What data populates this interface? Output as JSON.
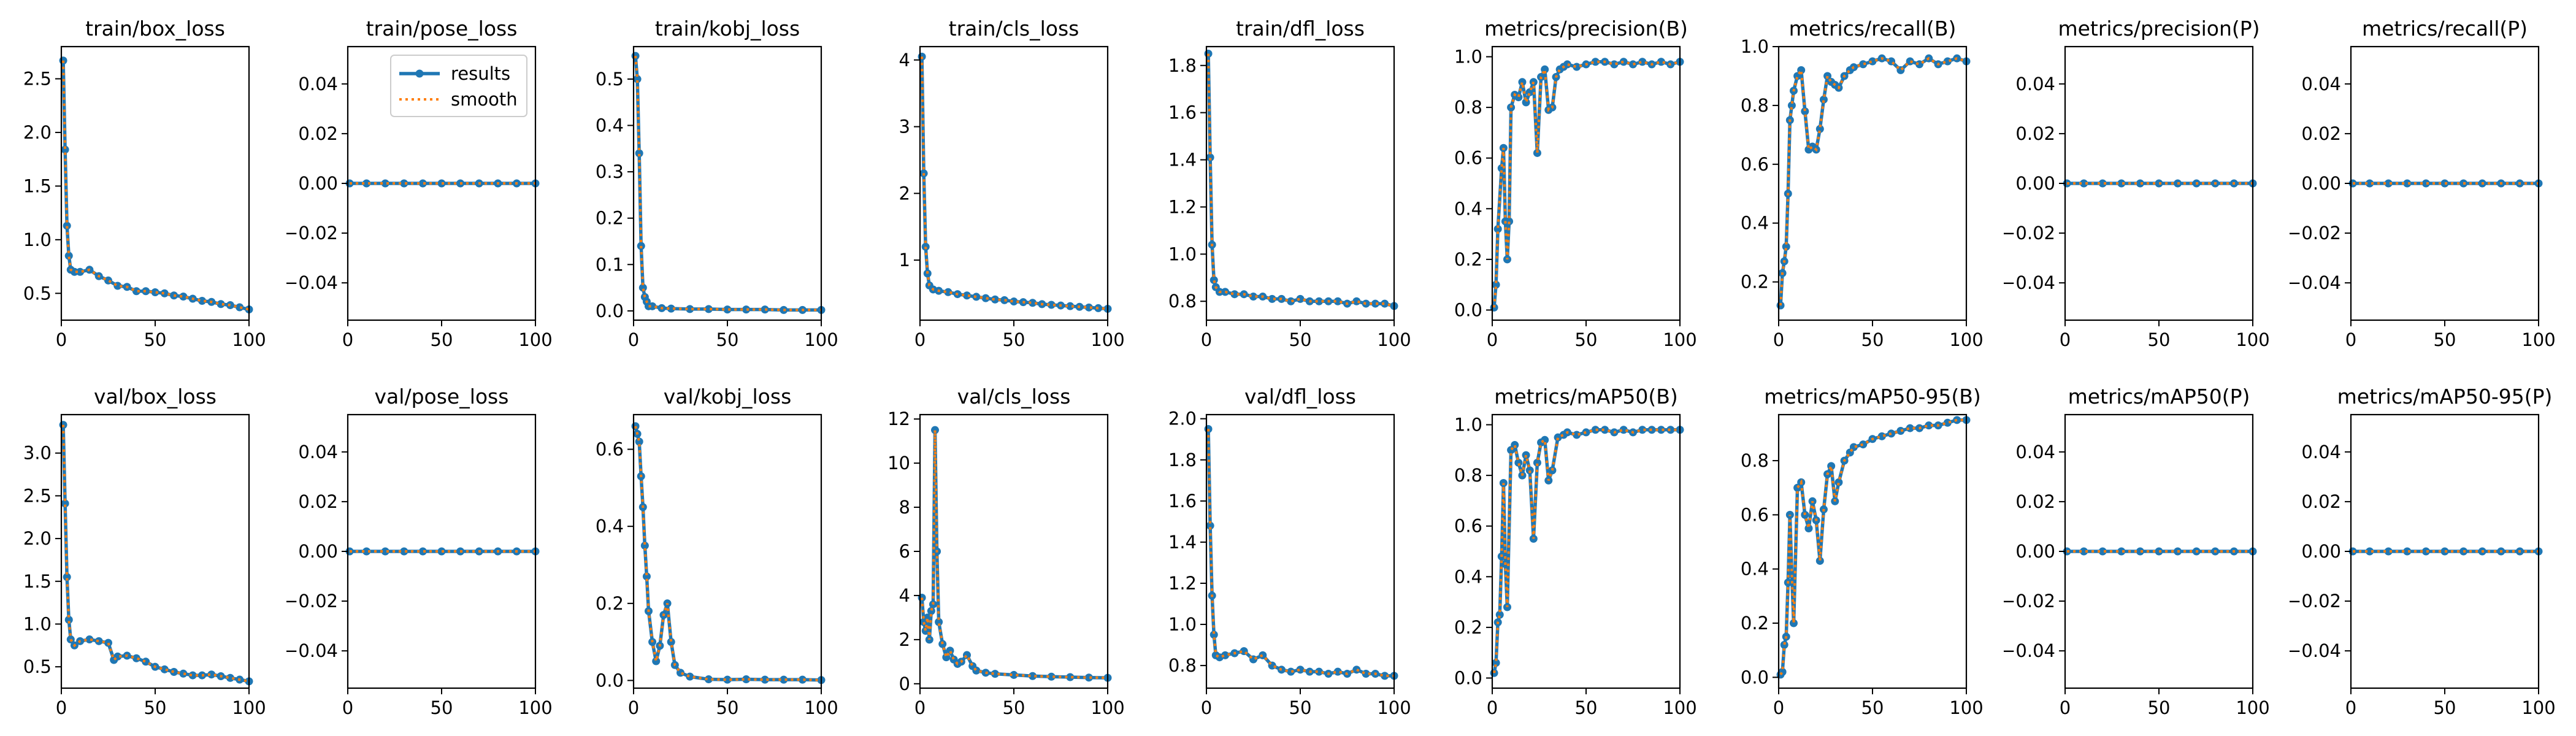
{
  "legend": {
    "results_label": "results",
    "smooth_label": "smooth"
  },
  "colors": {
    "results": "#1f77b4",
    "smooth": "#ff7f0e",
    "axis": "#000000",
    "background": "#ffffff"
  },
  "chart_data": [
    {
      "type": "line",
      "title": "train/box_loss",
      "legend": "none",
      "grid": false,
      "xlim": [
        0,
        100
      ],
      "ylim": [
        0.25,
        2.8
      ],
      "xticks": [
        0,
        50,
        100
      ],
      "yticks": [
        0.5,
        1.0,
        1.5,
        2.0,
        2.5
      ],
      "x": [
        1,
        2,
        3,
        4,
        5,
        7,
        10,
        15,
        20,
        25,
        30,
        35,
        40,
        45,
        50,
        55,
        60,
        65,
        70,
        75,
        80,
        85,
        90,
        95,
        100
      ],
      "values": [
        2.67,
        1.84,
        1.13,
        0.85,
        0.72,
        0.7,
        0.7,
        0.72,
        0.66,
        0.62,
        0.57,
        0.56,
        0.52,
        0.52,
        0.51,
        0.5,
        0.48,
        0.47,
        0.45,
        0.43,
        0.42,
        0.4,
        0.39,
        0.37,
        0.35
      ]
    },
    {
      "type": "line",
      "title": "train/pose_loss",
      "legend": "top-right",
      "grid": false,
      "xlim": [
        0,
        100
      ],
      "ylim": [
        -0.055,
        0.055
      ],
      "xticks": [
        0,
        50,
        100
      ],
      "yticks": [
        -0.04,
        -0.02,
        0.0,
        0.02,
        0.04
      ],
      "x": [
        1,
        10,
        20,
        30,
        40,
        50,
        60,
        70,
        80,
        90,
        100
      ],
      "values": [
        0,
        0,
        0,
        0,
        0,
        0,
        0,
        0,
        0,
        0,
        0
      ]
    },
    {
      "type": "line",
      "title": "train/kobj_loss",
      "legend": "none",
      "grid": false,
      "xlim": [
        0,
        100
      ],
      "ylim": [
        -0.02,
        0.57
      ],
      "xticks": [
        0,
        50,
        100
      ],
      "yticks": [
        0.0,
        0.1,
        0.2,
        0.3,
        0.4,
        0.5
      ],
      "x": [
        1,
        2,
        3,
        4,
        5,
        6,
        7,
        8,
        10,
        15,
        20,
        30,
        40,
        50,
        60,
        70,
        80,
        90,
        100
      ],
      "values": [
        0.55,
        0.5,
        0.34,
        0.14,
        0.05,
        0.03,
        0.02,
        0.01,
        0.01,
        0.006,
        0.005,
        0.004,
        0.004,
        0.003,
        0.003,
        0.003,
        0.002,
        0.002,
        0.002
      ]
    },
    {
      "type": "line",
      "title": "train/cls_loss",
      "legend": "none",
      "grid": false,
      "xlim": [
        0,
        100
      ],
      "ylim": [
        0.1,
        4.2
      ],
      "xticks": [
        0,
        50,
        100
      ],
      "yticks": [
        1,
        2,
        3,
        4
      ],
      "x": [
        1,
        2,
        3,
        4,
        5,
        7,
        10,
        15,
        20,
        25,
        30,
        35,
        40,
        45,
        50,
        55,
        60,
        65,
        70,
        75,
        80,
        85,
        90,
        95,
        100
      ],
      "values": [
        4.05,
        2.3,
        1.2,
        0.8,
        0.62,
        0.56,
        0.54,
        0.52,
        0.49,
        0.47,
        0.45,
        0.43,
        0.41,
        0.4,
        0.38,
        0.37,
        0.36,
        0.34,
        0.33,
        0.32,
        0.31,
        0.3,
        0.29,
        0.28,
        0.27
      ]
    },
    {
      "type": "line",
      "title": "train/dfl_loss",
      "legend": "none",
      "grid": false,
      "xlim": [
        0,
        100
      ],
      "ylim": [
        0.72,
        1.88
      ],
      "xticks": [
        0,
        50,
        100
      ],
      "yticks": [
        0.8,
        1.0,
        1.2,
        1.4,
        1.6,
        1.8
      ],
      "x": [
        1,
        2,
        3,
        4,
        5,
        7,
        10,
        15,
        20,
        25,
        30,
        35,
        40,
        45,
        50,
        55,
        60,
        65,
        70,
        75,
        80,
        85,
        90,
        95,
        100
      ],
      "values": [
        1.85,
        1.41,
        1.04,
        0.89,
        0.86,
        0.84,
        0.84,
        0.83,
        0.83,
        0.82,
        0.82,
        0.81,
        0.81,
        0.8,
        0.81,
        0.8,
        0.8,
        0.8,
        0.8,
        0.79,
        0.8,
        0.79,
        0.79,
        0.79,
        0.78
      ]
    },
    {
      "type": "line",
      "title": "metrics/precision(B)",
      "legend": "none",
      "grid": false,
      "xlim": [
        0,
        100
      ],
      "ylim": [
        -0.04,
        1.04
      ],
      "xticks": [
        0,
        50,
        100
      ],
      "yticks": [
        0.0,
        0.2,
        0.4,
        0.6,
        0.8,
        1.0
      ],
      "x": [
        1,
        2,
        3,
        5,
        6,
        7,
        8,
        9,
        10,
        12,
        14,
        16,
        18,
        20,
        22,
        24,
        26,
        28,
        30,
        32,
        34,
        36,
        38,
        40,
        45,
        50,
        55,
        60,
        65,
        70,
        75,
        80,
        85,
        90,
        95,
        100
      ],
      "values": [
        0.01,
        0.1,
        0.32,
        0.56,
        0.64,
        0.35,
        0.2,
        0.35,
        0.8,
        0.85,
        0.84,
        0.9,
        0.82,
        0.86,
        0.9,
        0.62,
        0.92,
        0.95,
        0.79,
        0.8,
        0.92,
        0.95,
        0.96,
        0.97,
        0.96,
        0.97,
        0.98,
        0.98,
        0.97,
        0.98,
        0.97,
        0.98,
        0.97,
        0.98,
        0.97,
        0.98
      ]
    },
    {
      "type": "line",
      "title": "metrics/recall(B)",
      "legend": "none",
      "grid": false,
      "xlim": [
        0,
        100
      ],
      "ylim": [
        0.07,
        1.0
      ],
      "xticks": [
        0,
        50,
        100
      ],
      "yticks": [
        0.2,
        0.4,
        0.6,
        0.8,
        1.0
      ],
      "x": [
        1,
        2,
        3,
        4,
        5,
        6,
        7,
        8,
        10,
        12,
        14,
        16,
        18,
        20,
        22,
        24,
        26,
        28,
        30,
        32,
        35,
        38,
        40,
        45,
        50,
        55,
        60,
        65,
        70,
        75,
        80,
        85,
        90,
        95,
        100
      ],
      "values": [
        0.12,
        0.23,
        0.27,
        0.32,
        0.5,
        0.75,
        0.8,
        0.85,
        0.9,
        0.92,
        0.78,
        0.65,
        0.66,
        0.65,
        0.72,
        0.82,
        0.9,
        0.88,
        0.87,
        0.86,
        0.9,
        0.92,
        0.93,
        0.94,
        0.95,
        0.96,
        0.95,
        0.92,
        0.95,
        0.94,
        0.96,
        0.94,
        0.95,
        0.96,
        0.95
      ]
    },
    {
      "type": "line",
      "title": "metrics/precision(P)",
      "legend": "none",
      "grid": false,
      "xlim": [
        0,
        100
      ],
      "ylim": [
        -0.055,
        0.055
      ],
      "xticks": [
        0,
        50,
        100
      ],
      "yticks": [
        -0.04,
        -0.02,
        0.0,
        0.02,
        0.04
      ],
      "x": [
        1,
        10,
        20,
        30,
        40,
        50,
        60,
        70,
        80,
        90,
        100
      ],
      "values": [
        0,
        0,
        0,
        0,
        0,
        0,
        0,
        0,
        0,
        0,
        0
      ]
    },
    {
      "type": "line",
      "title": "metrics/recall(P)",
      "legend": "none",
      "grid": false,
      "xlim": [
        0,
        100
      ],
      "ylim": [
        -0.055,
        0.055
      ],
      "xticks": [
        0,
        50,
        100
      ],
      "yticks": [
        -0.04,
        -0.02,
        0.0,
        0.02,
        0.04
      ],
      "x": [
        1,
        10,
        20,
        30,
        40,
        50,
        60,
        70,
        80,
        90,
        100
      ],
      "values": [
        0,
        0,
        0,
        0,
        0,
        0,
        0,
        0,
        0,
        0,
        0
      ]
    },
    {
      "type": "line",
      "title": "val/box_loss",
      "legend": "none",
      "grid": false,
      "xlim": [
        0,
        100
      ],
      "ylim": [
        0.25,
        3.45
      ],
      "xticks": [
        0,
        50,
        100
      ],
      "yticks": [
        0.5,
        1.0,
        1.5,
        2.0,
        2.5,
        3.0
      ],
      "x": [
        1,
        2,
        3,
        4,
        5,
        7,
        10,
        15,
        20,
        25,
        28,
        30,
        35,
        40,
        45,
        50,
        55,
        60,
        65,
        70,
        75,
        80,
        85,
        90,
        95,
        100
      ],
      "values": [
        3.33,
        2.41,
        1.55,
        1.05,
        0.82,
        0.75,
        0.8,
        0.82,
        0.8,
        0.78,
        0.58,
        0.62,
        0.63,
        0.6,
        0.56,
        0.5,
        0.47,
        0.44,
        0.42,
        0.4,
        0.4,
        0.41,
        0.39,
        0.37,
        0.35,
        0.33
      ]
    },
    {
      "type": "line",
      "title": "val/pose_loss",
      "legend": "none",
      "grid": false,
      "xlim": [
        0,
        100
      ],
      "ylim": [
        -0.055,
        0.055
      ],
      "xticks": [
        0,
        50,
        100
      ],
      "yticks": [
        -0.04,
        -0.02,
        0.0,
        0.02,
        0.04
      ],
      "x": [
        1,
        10,
        20,
        30,
        40,
        50,
        60,
        70,
        80,
        90,
        100
      ],
      "values": [
        0,
        0,
        0,
        0,
        0,
        0,
        0,
        0,
        0,
        0,
        0
      ]
    },
    {
      "type": "line",
      "title": "val/kobj_loss",
      "legend": "none",
      "grid": false,
      "xlim": [
        0,
        100
      ],
      "ylim": [
        -0.02,
        0.69
      ],
      "xticks": [
        0,
        50,
        100
      ],
      "yticks": [
        0.0,
        0.2,
        0.4,
        0.6
      ],
      "x": [
        1,
        2,
        3,
        4,
        5,
        6,
        7,
        8,
        10,
        12,
        14,
        16,
        18,
        20,
        22,
        25,
        30,
        40,
        50,
        60,
        70,
        80,
        90,
        100
      ],
      "values": [
        0.66,
        0.64,
        0.62,
        0.53,
        0.45,
        0.35,
        0.27,
        0.18,
        0.1,
        0.05,
        0.09,
        0.17,
        0.2,
        0.1,
        0.04,
        0.02,
        0.01,
        0.003,
        0.002,
        0.003,
        0.002,
        0.002,
        0.002,
        0.001
      ]
    },
    {
      "type": "line",
      "title": "val/cls_loss",
      "legend": "none",
      "grid": false,
      "xlim": [
        0,
        100
      ],
      "ylim": [
        -0.2,
        12.2
      ],
      "xticks": [
        0,
        50,
        100
      ],
      "yticks": [
        0,
        2,
        4,
        6,
        8,
        10,
        12
      ],
      "x": [
        1,
        2,
        3,
        4,
        5,
        6,
        7,
        8,
        9,
        10,
        12,
        14,
        16,
        18,
        20,
        22,
        25,
        28,
        30,
        35,
        40,
        50,
        60,
        70,
        80,
        90,
        100
      ],
      "values": [
        3.9,
        2.8,
        2.4,
        3.0,
        2.0,
        3.3,
        3.6,
        11.5,
        6.0,
        2.8,
        1.8,
        1.2,
        1.5,
        1.1,
        0.9,
        1.0,
        1.3,
        0.8,
        0.6,
        0.5,
        0.45,
        0.4,
        0.35,
        0.32,
        0.3,
        0.28,
        0.27
      ]
    },
    {
      "type": "line",
      "title": "val/dfl_loss",
      "legend": "none",
      "grid": false,
      "xlim": [
        0,
        100
      ],
      "ylim": [
        0.69,
        2.02
      ],
      "xticks": [
        0,
        50,
        100
      ],
      "yticks": [
        0.8,
        1.0,
        1.2,
        1.4,
        1.6,
        1.8,
        2.0
      ],
      "x": [
        1,
        2,
        3,
        4,
        5,
        7,
        10,
        15,
        20,
        25,
        30,
        35,
        40,
        45,
        50,
        55,
        60,
        65,
        70,
        75,
        80,
        85,
        90,
        95,
        100
      ],
      "values": [
        1.95,
        1.48,
        1.14,
        0.95,
        0.85,
        0.84,
        0.85,
        0.86,
        0.87,
        0.83,
        0.85,
        0.8,
        0.78,
        0.77,
        0.78,
        0.77,
        0.77,
        0.76,
        0.77,
        0.76,
        0.78,
        0.76,
        0.76,
        0.75,
        0.75
      ]
    },
    {
      "type": "line",
      "title": "metrics/mAP50(B)",
      "legend": "none",
      "grid": false,
      "xlim": [
        0,
        100
      ],
      "ylim": [
        -0.04,
        1.04
      ],
      "xticks": [
        0,
        50,
        100
      ],
      "yticks": [
        0.0,
        0.2,
        0.4,
        0.6,
        0.8,
        1.0
      ],
      "x": [
        1,
        2,
        3,
        4,
        5,
        6,
        7,
        8,
        10,
        12,
        14,
        16,
        18,
        20,
        22,
        24,
        26,
        28,
        30,
        32,
        35,
        38,
        40,
        45,
        50,
        55,
        60,
        65,
        70,
        75,
        80,
        85,
        90,
        95,
        100
      ],
      "values": [
        0.02,
        0.06,
        0.22,
        0.25,
        0.48,
        0.77,
        0.45,
        0.28,
        0.9,
        0.92,
        0.85,
        0.8,
        0.88,
        0.82,
        0.55,
        0.85,
        0.93,
        0.94,
        0.78,
        0.82,
        0.95,
        0.96,
        0.97,
        0.96,
        0.97,
        0.98,
        0.98,
        0.97,
        0.98,
        0.97,
        0.98,
        0.98,
        0.98,
        0.98,
        0.98
      ]
    },
    {
      "type": "line",
      "title": "metrics/mAP50-95(B)",
      "legend": "none",
      "grid": false,
      "xlim": [
        0,
        100
      ],
      "ylim": [
        -0.04,
        0.97
      ],
      "xticks": [
        0,
        50,
        100
      ],
      "yticks": [
        0.0,
        0.2,
        0.4,
        0.6,
        0.8
      ],
      "x": [
        1,
        2,
        3,
        4,
        5,
        6,
        7,
        8,
        10,
        12,
        14,
        16,
        18,
        20,
        22,
        24,
        26,
        28,
        30,
        32,
        35,
        38,
        40,
        45,
        50,
        55,
        60,
        65,
        70,
        75,
        80,
        85,
        90,
        95,
        100
      ],
      "values": [
        0.01,
        0.02,
        0.12,
        0.15,
        0.35,
        0.6,
        0.38,
        0.2,
        0.7,
        0.72,
        0.6,
        0.55,
        0.65,
        0.58,
        0.43,
        0.62,
        0.75,
        0.78,
        0.65,
        0.72,
        0.8,
        0.83,
        0.85,
        0.86,
        0.88,
        0.89,
        0.9,
        0.91,
        0.92,
        0.92,
        0.93,
        0.93,
        0.94,
        0.95,
        0.95
      ]
    },
    {
      "type": "line",
      "title": "metrics/mAP50(P)",
      "legend": "none",
      "grid": false,
      "xlim": [
        0,
        100
      ],
      "ylim": [
        -0.055,
        0.055
      ],
      "xticks": [
        0,
        50,
        100
      ],
      "yticks": [
        -0.04,
        -0.02,
        0.0,
        0.02,
        0.04
      ],
      "x": [
        1,
        10,
        20,
        30,
        40,
        50,
        60,
        70,
        80,
        90,
        100
      ],
      "values": [
        0,
        0,
        0,
        0,
        0,
        0,
        0,
        0,
        0,
        0,
        0
      ]
    },
    {
      "type": "line",
      "title": "metrics/mAP50-95(P)",
      "legend": "none",
      "grid": false,
      "xlim": [
        0,
        100
      ],
      "ylim": [
        -0.055,
        0.055
      ],
      "xticks": [
        0,
        50,
        100
      ],
      "yticks": [
        -0.04,
        -0.02,
        0.0,
        0.02,
        0.04
      ],
      "x": [
        1,
        10,
        20,
        30,
        40,
        50,
        60,
        70,
        80,
        90,
        100
      ],
      "values": [
        0,
        0,
        0,
        0,
        0,
        0,
        0,
        0,
        0,
        0,
        0
      ]
    }
  ]
}
